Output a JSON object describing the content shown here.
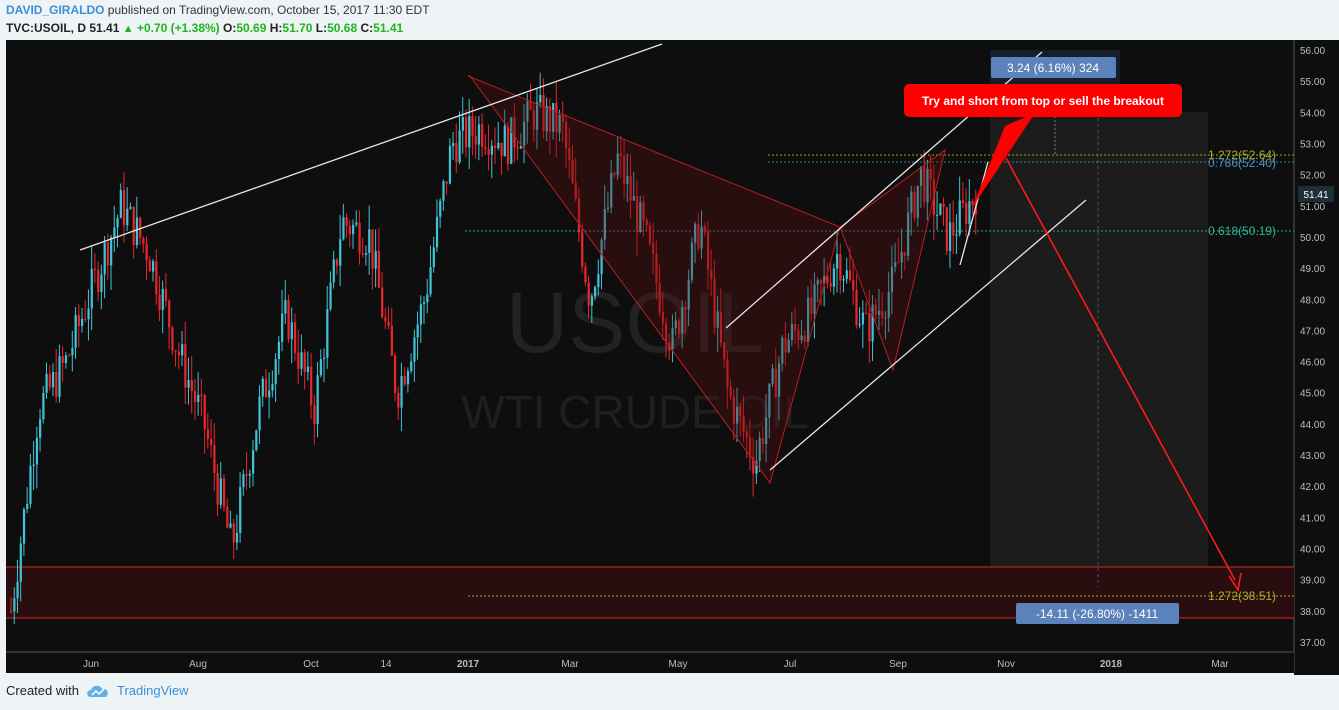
{
  "header": {
    "author": "DAVID_GIRALDO",
    "published_text": "published on TradingView.com, October 15, 2017 11:30 EDT",
    "symbol": "TVC:USOIL, D",
    "last": "51.41",
    "change": "+0.70 (+1.38%)",
    "open_label": "O:",
    "open": "50.69",
    "high_label": "H:",
    "high": "51.70",
    "low_label": "L:",
    "low": "50.68",
    "close_label": "C:",
    "close": "51.41"
  },
  "watermark": {
    "symbol": "USOIL",
    "name": "WTI CRUDE OIL"
  },
  "footer": {
    "created_with": "Created with",
    "brand": "TradingView"
  },
  "colors": {
    "up": "#41c3d6",
    "down": "#e8262b",
    "background": "#0e0e0e",
    "accent": "#3b8fd8"
  },
  "chart_data": {
    "type": "candlestick",
    "title": "TVC:USOIL, D",
    "x_ticks": [
      "Jun",
      "Aug",
      "Oct",
      "14",
      "2017",
      "Mar",
      "May",
      "Jul",
      "Sep",
      "Nov",
      "2018",
      "Mar"
    ],
    "y_ticks": [
      "56.00",
      "55.00",
      "54.00",
      "53.00",
      "52.00",
      "51.00",
      "50.00",
      "49.00",
      "48.00",
      "47.00",
      "46.00",
      "45.00",
      "44.00",
      "43.00",
      "42.00",
      "41.00",
      "40.00",
      "39.00",
      "38.00",
      "37.00"
    ],
    "ylim": [
      36.5,
      56.2
    ],
    "last_price": "51.41",
    "approx_series": [
      {
        "x": "Apr 2016",
        "y": 38.0
      },
      {
        "x": "Apr 2016",
        "y": 44.5
      },
      {
        "x": "May 2016",
        "y": 46.0
      },
      {
        "x": "May 2016",
        "y": 48.5
      },
      {
        "x": "Jun 2016",
        "y": 51.0
      },
      {
        "x": "Jun 2016",
        "y": 49.5
      },
      {
        "x": "Jul 2016",
        "y": 46.5
      },
      {
        "x": "Jul 2016",
        "y": 44.0
      },
      {
        "x": "Aug 2016",
        "y": 40.0
      },
      {
        "x": "Aug 2016",
        "y": 44.5
      },
      {
        "x": "Sep 2016",
        "y": 47.5
      },
      {
        "x": "Sep 2016",
        "y": 44.5
      },
      {
        "x": "Oct 2016",
        "y": 50.5
      },
      {
        "x": "Oct 2016",
        "y": 50.0
      },
      {
        "x": "Nov 2016",
        "y": 45.0
      },
      {
        "x": "Nov 2016",
        "y": 48.0
      },
      {
        "x": "Dec 2016",
        "y": 53.0
      },
      {
        "x": "Jan 2017",
        "y": 53.5
      },
      {
        "x": "Feb 2017",
        "y": 53.0
      },
      {
        "x": "Feb 2017",
        "y": 54.0
      },
      {
        "x": "Mar 2017",
        "y": 53.5
      },
      {
        "x": "Mar 2017",
        "y": 48.0
      },
      {
        "x": "Apr 2017",
        "y": 52.5
      },
      {
        "x": "Apr 2017",
        "y": 50.0
      },
      {
        "x": "May 2017",
        "y": 46.5
      },
      {
        "x": "May 2017",
        "y": 50.5
      },
      {
        "x": "Jun 2017",
        "y": 45.0
      },
      {
        "x": "Jun 2017",
        "y": 42.8
      },
      {
        "x": "Jul 2017",
        "y": 46.5
      },
      {
        "x": "Jul 2017",
        "y": 47.5
      },
      {
        "x": "Aug 2017",
        "y": 49.5
      },
      {
        "x": "Aug 2017",
        "y": 47.0
      },
      {
        "x": "Sep 2017",
        "y": 48.5
      },
      {
        "x": "Sep 2017",
        "y": 52.0
      },
      {
        "x": "Oct 2017",
        "y": 50.0
      },
      {
        "x": "Oct 2017",
        "y": 51.41
      }
    ],
    "annotations": {
      "callout": "Try and short from top or sell the breakout",
      "measure_up": "3.24 (6.16%) 324",
      "measure_down": "-14.11 (-26.80%) -1411",
      "fib_1272_top": "1.272(52.64)",
      "fib_786": "0.786(52.40)",
      "fib_618": "0.618(50.19)",
      "fib_1272_bottom": "1.272(38.51)"
    }
  }
}
